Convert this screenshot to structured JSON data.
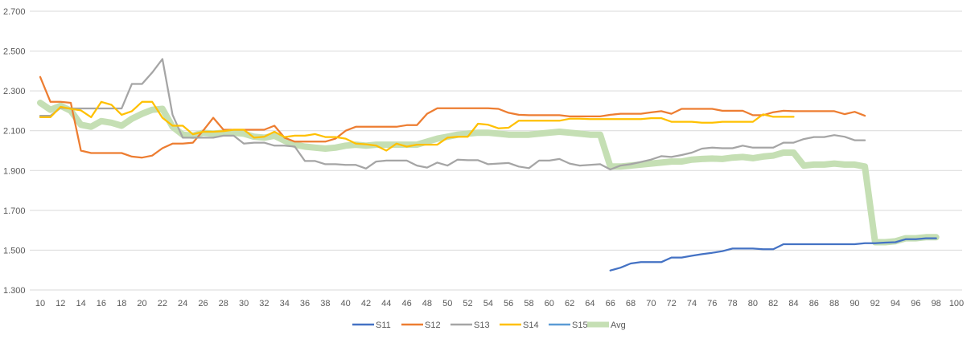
{
  "chart_data": {
    "type": "line",
    "title": "",
    "xlabel": "",
    "ylabel": "",
    "xlim": [
      10,
      100
    ],
    "ylim": [
      1.3,
      2.7
    ],
    "y_ticks": [
      "1.300",
      "1.500",
      "1.700",
      "1.900",
      "2.100",
      "2.300",
      "2.500",
      "2.700"
    ],
    "x_ticks": [
      "10",
      "12",
      "14",
      "16",
      "18",
      "20",
      "22",
      "24",
      "26",
      "28",
      "30",
      "32",
      "34",
      "36",
      "38",
      "40",
      "42",
      "44",
      "46",
      "48",
      "50",
      "52",
      "54",
      "56",
      "58",
      "60",
      "62",
      "64",
      "66",
      "68",
      "70",
      "72",
      "74",
      "76",
      "78",
      "80",
      "82",
      "84",
      "86",
      "88",
      "90",
      "92",
      "94",
      "96",
      "98",
      "100"
    ],
    "grid": "horizontal",
    "legend_position": "bottom",
    "series": [
      {
        "name": "S11",
        "color": "#4472C4",
        "width": 2.25,
        "x": [
          66,
          67,
          68,
          69,
          70,
          71,
          72,
          73,
          74,
          75,
          76,
          77,
          78,
          79,
          80,
          81,
          82,
          83,
          84,
          85,
          86,
          87,
          88,
          89,
          90,
          91,
          92,
          93,
          94,
          95,
          96,
          97,
          98
        ],
        "y": [
          1.398,
          1.412,
          1.433,
          1.44,
          1.44,
          1.44,
          1.463,
          1.463,
          1.472,
          1.48,
          1.487,
          1.495,
          1.508,
          1.508,
          1.508,
          1.505,
          1.505,
          1.53,
          1.53,
          1.53,
          1.53,
          1.53,
          1.53,
          1.53,
          1.53,
          1.535,
          1.535,
          1.538,
          1.54,
          1.555,
          1.555,
          1.56,
          1.56
        ]
      },
      {
        "name": "S12",
        "color": "#ED7D31",
        "width": 2.25,
        "x": [
          10,
          11,
          12,
          13,
          14,
          15,
          16,
          17,
          18,
          19,
          20,
          21,
          22,
          23,
          24,
          25,
          26,
          27,
          28,
          29,
          30,
          31,
          32,
          33,
          34,
          35,
          36,
          37,
          38,
          39,
          40,
          41,
          42,
          43,
          44,
          45,
          46,
          47,
          48,
          49,
          50,
          51,
          52,
          53,
          54,
          55,
          56,
          57,
          58,
          59,
          60,
          61,
          62,
          63,
          64,
          65,
          66,
          67,
          68,
          69,
          70,
          71,
          72,
          73,
          74,
          75,
          76,
          77,
          78,
          79,
          80,
          81,
          82,
          83,
          84,
          85,
          86,
          87,
          88,
          89,
          90,
          91
        ],
        "y": [
          2.37,
          2.245,
          2.245,
          2.24,
          2.0,
          1.988,
          1.988,
          1.988,
          1.988,
          1.97,
          1.965,
          1.975,
          2.012,
          2.035,
          2.035,
          2.04,
          2.1,
          2.165,
          2.105,
          2.105,
          2.105,
          2.105,
          2.105,
          2.125,
          2.065,
          2.045,
          2.045,
          2.045,
          2.045,
          2.06,
          2.1,
          2.12,
          2.12,
          2.12,
          2.12,
          2.12,
          2.128,
          2.128,
          2.185,
          2.213,
          2.213,
          2.213,
          2.213,
          2.213,
          2.213,
          2.21,
          2.19,
          2.18,
          2.178,
          2.178,
          2.178,
          2.178,
          2.172,
          2.172,
          2.172,
          2.172,
          2.18,
          2.185,
          2.185,
          2.185,
          2.192,
          2.198,
          2.185,
          2.21,
          2.21,
          2.21,
          2.21,
          2.2,
          2.2,
          2.2,
          2.178,
          2.178,
          2.193,
          2.2,
          2.198,
          2.198,
          2.198,
          2.198,
          2.198,
          2.183,
          2.195,
          2.175
        ]
      },
      {
        "name": "S13",
        "color": "#A5A5A5",
        "width": 2.25,
        "x": [
          10,
          11,
          12,
          13,
          14,
          15,
          16,
          17,
          18,
          19,
          20,
          21,
          22,
          23,
          24,
          25,
          26,
          27,
          28,
          29,
          30,
          31,
          32,
          33,
          34,
          35,
          36,
          37,
          38,
          39,
          40,
          41,
          42,
          43,
          44,
          45,
          46,
          47,
          48,
          49,
          50,
          51,
          52,
          53,
          54,
          55,
          56,
          57,
          58,
          59,
          60,
          61,
          62,
          63,
          64,
          65,
          66,
          67,
          68,
          69,
          70,
          71,
          72,
          73,
          74,
          75,
          76,
          77,
          78,
          79,
          80,
          81,
          82,
          83,
          84,
          85,
          86,
          87,
          88,
          89,
          90,
          91
        ],
        "y": [
          2.175,
          2.175,
          2.215,
          2.212,
          2.212,
          2.212,
          2.212,
          2.212,
          2.212,
          2.335,
          2.335,
          2.392,
          2.46,
          2.18,
          2.065,
          2.065,
          2.065,
          2.065,
          2.075,
          2.075,
          2.035,
          2.04,
          2.04,
          2.025,
          2.025,
          2.02,
          1.948,
          1.948,
          1.932,
          1.932,
          1.928,
          1.928,
          1.91,
          1.945,
          1.95,
          1.95,
          1.95,
          1.925,
          1.915,
          1.94,
          1.925,
          1.955,
          1.952,
          1.952,
          1.932,
          1.935,
          1.938,
          1.92,
          1.912,
          1.95,
          1.95,
          1.958,
          1.935,
          1.925,
          1.928,
          1.932,
          1.905,
          1.925,
          1.932,
          1.943,
          1.955,
          1.972,
          1.968,
          1.978,
          1.99,
          2.01,
          2.015,
          2.012,
          2.012,
          2.025,
          2.015,
          2.015,
          2.015,
          2.04,
          2.04,
          2.058,
          2.068,
          2.068,
          2.078,
          2.07,
          2.052,
          2.052
        ]
      },
      {
        "name": "S14",
        "color": "#FFC000",
        "width": 2.25,
        "x": [
          10,
          11,
          12,
          13,
          14,
          15,
          16,
          17,
          18,
          19,
          20,
          21,
          22,
          23,
          24,
          25,
          26,
          27,
          28,
          29,
          30,
          31,
          32,
          33,
          34,
          35,
          36,
          37,
          38,
          39,
          40,
          41,
          42,
          43,
          44,
          45,
          46,
          47,
          48,
          49,
          50,
          51,
          52,
          53,
          54,
          55,
          56,
          57,
          58,
          59,
          60,
          61,
          62,
          63,
          64,
          65,
          66,
          67,
          68,
          69,
          70,
          71,
          72,
          73,
          74,
          75,
          76,
          77,
          78,
          79,
          80,
          81,
          82,
          83,
          84
        ],
        "y": [
          2.168,
          2.168,
          2.22,
          2.21,
          2.202,
          2.168,
          2.245,
          2.23,
          2.18,
          2.198,
          2.245,
          2.245,
          2.165,
          2.125,
          2.125,
          2.082,
          2.095,
          2.095,
          2.098,
          2.105,
          2.105,
          2.065,
          2.07,
          2.095,
          2.068,
          2.075,
          2.075,
          2.083,
          2.068,
          2.068,
          2.06,
          2.035,
          2.032,
          2.025,
          2.0,
          2.035,
          2.02,
          2.03,
          2.03,
          2.03,
          2.065,
          2.07,
          2.07,
          2.135,
          2.13,
          2.112,
          2.115,
          2.15,
          2.15,
          2.15,
          2.15,
          2.15,
          2.16,
          2.16,
          2.158,
          2.158,
          2.158,
          2.158,
          2.158,
          2.158,
          2.163,
          2.163,
          2.145,
          2.145,
          2.145,
          2.14,
          2.14,
          2.145,
          2.145,
          2.145,
          2.145,
          2.182,
          2.17,
          2.17,
          2.17
        ]
      },
      {
        "name": "S15",
        "color": "#5B9BD5",
        "width": 2.25,
        "x": [],
        "y": []
      },
      {
        "name": "Avg",
        "color": "#C5DFB4",
        "width": 8,
        "x": [
          10,
          11,
          12,
          13,
          14,
          15,
          16,
          17,
          18,
          19,
          20,
          21,
          22,
          23,
          24,
          25,
          26,
          27,
          28,
          29,
          30,
          31,
          32,
          33,
          34,
          35,
          36,
          37,
          38,
          39,
          40,
          41,
          42,
          43,
          44,
          45,
          46,
          47,
          48,
          49,
          50,
          51,
          52,
          53,
          54,
          55,
          56,
          57,
          58,
          59,
          60,
          61,
          62,
          63,
          64,
          65,
          66,
          67,
          68,
          69,
          70,
          71,
          72,
          73,
          74,
          75,
          76,
          77,
          78,
          79,
          80,
          81,
          82,
          83,
          84,
          85,
          86,
          87,
          88,
          89,
          90,
          91,
          92,
          93,
          94,
          95,
          96,
          97,
          98
        ],
        "y": [
          2.24,
          2.205,
          2.225,
          2.2,
          2.13,
          2.12,
          2.148,
          2.14,
          2.125,
          2.16,
          2.185,
          2.205,
          2.21,
          2.12,
          2.08,
          2.075,
          2.09,
          2.085,
          2.09,
          2.09,
          2.085,
          2.07,
          2.065,
          2.075,
          2.05,
          2.03,
          2.02,
          2.015,
          2.01,
          2.015,
          2.025,
          2.03,
          2.025,
          2.03,
          2.03,
          2.03,
          2.03,
          2.03,
          2.045,
          2.06,
          2.07,
          2.08,
          2.085,
          2.09,
          2.09,
          2.085,
          2.08,
          2.08,
          2.08,
          2.085,
          2.09,
          2.095,
          2.09,
          2.085,
          2.08,
          2.08,
          1.92,
          1.92,
          1.925,
          1.93,
          1.935,
          1.94,
          1.945,
          1.945,
          1.955,
          1.958,
          1.96,
          1.958,
          1.965,
          1.968,
          1.962,
          1.97,
          1.975,
          1.99,
          1.99,
          1.925,
          1.93,
          1.93,
          1.935,
          1.93,
          1.93,
          1.92,
          1.54,
          1.54,
          1.545,
          1.56,
          1.56,
          1.565,
          1.565
        ]
      }
    ]
  }
}
